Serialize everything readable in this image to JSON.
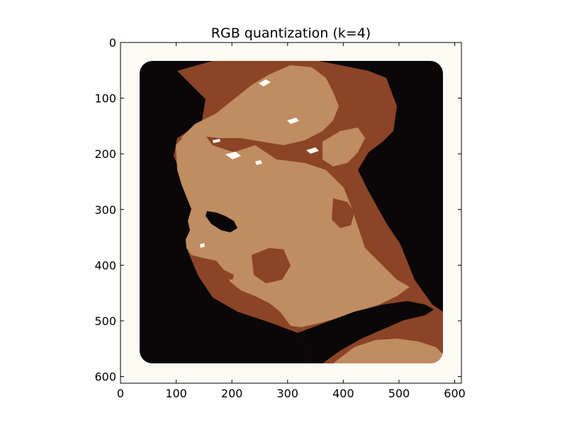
{
  "chart_data": {
    "type": "image",
    "title": "RGB quantization (k=4)",
    "xlabel": "",
    "ylabel": "",
    "xlim": [
      0,
      612
    ],
    "ylim": [
      612,
      0
    ],
    "x_ticks": [
      0,
      100,
      200,
      300,
      400,
      500,
      600
    ],
    "y_ticks": [
      0,
      100,
      200,
      300,
      400,
      500,
      600
    ],
    "grid": false,
    "palette": {
      "background": "#0a0709",
      "dark_brown": "#8b4426",
      "skin_tone": "#c08c62",
      "highlight": "#fcfaf5"
    },
    "image_subject": "quantized portrait photo, 4 colors"
  }
}
